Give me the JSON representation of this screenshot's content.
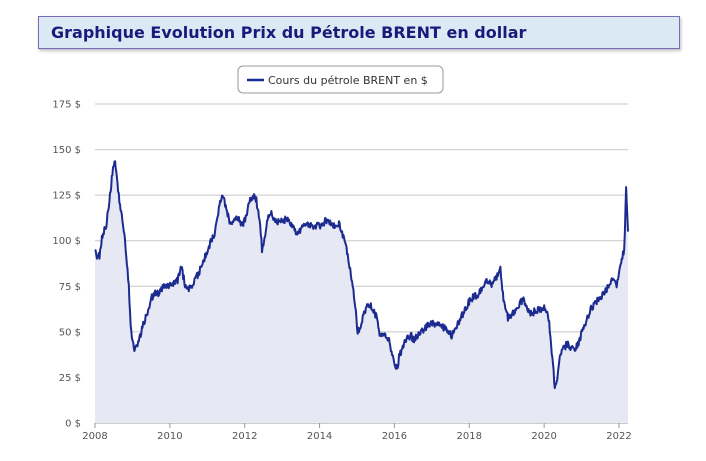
{
  "header": {
    "title": "Graphique Evolution Prix du Pétrole BRENT en dollar"
  },
  "colors": {
    "series": "#1c2b8f",
    "area": "#e6e8f4",
    "grid": "#c8c8c8"
  },
  "chart_data": {
    "type": "area",
    "title": "Graphique Evolution Prix du Pétrole BRENT en dollar",
    "legend": {
      "position": "top-center",
      "label": "Cours du pétrole BRENT en $"
    },
    "xlim": [
      2008,
      2022.2
    ],
    "ylim": [
      0,
      175
    ],
    "y_ticks": [
      "0 $",
      "25 $",
      "50 $",
      "75 $",
      "100 $",
      "125 $",
      "150 $",
      "175 $"
    ],
    "x_ticks": [
      "2008",
      "2010",
      "2012",
      "2014",
      "2016",
      "2018",
      "2020",
      "2022"
    ],
    "grid": true,
    "series": [
      {
        "name": "Cours du pétrole BRENT en $",
        "x": [
          2008.0,
          2008.05,
          2008.12,
          2008.2,
          2008.3,
          2008.4,
          2008.48,
          2008.52,
          2008.6,
          2008.7,
          2008.8,
          2008.9,
          2008.95,
          2009.0,
          2009.05,
          2009.1,
          2009.2,
          2009.3,
          2009.4,
          2009.5,
          2009.6,
          2009.7,
          2009.8,
          2009.9,
          2010.0,
          2010.2,
          2010.3,
          2010.4,
          2010.5,
          2010.6,
          2010.7,
          2010.8,
          2010.9,
          2011.0,
          2011.1,
          2011.2,
          2011.3,
          2011.4,
          2011.5,
          2011.6,
          2011.7,
          2011.8,
          2011.9,
          2012.0,
          2012.1,
          2012.2,
          2012.3,
          2012.4,
          2012.45,
          2012.5,
          2012.6,
          2012.7,
          2012.8,
          2012.9,
          2013.0,
          2013.2,
          2013.4,
          2013.6,
          2013.8,
          2014.0,
          2014.2,
          2014.4,
          2014.5,
          2014.6,
          2014.7,
          2014.8,
          2014.9,
          2015.0,
          2015.1,
          2015.2,
          2015.3,
          2015.4,
          2015.5,
          2015.6,
          2015.7,
          2015.8,
          2015.9,
          2016.0,
          2016.05,
          2016.1,
          2016.2,
          2016.3,
          2016.4,
          2016.5,
          2016.6,
          2016.7,
          2016.8,
          2016.9,
          2017.0,
          2017.2,
          2017.4,
          2017.5,
          2017.6,
          2017.8,
          2018.0,
          2018.2,
          2018.4,
          2018.6,
          2018.8,
          2018.9,
          2019.0,
          2019.2,
          2019.4,
          2019.5,
          2019.6,
          2019.8,
          2020.0,
          2020.1,
          2020.2,
          2020.25,
          2020.3,
          2020.4,
          2020.5,
          2020.6,
          2020.8,
          2020.9,
          2021.0,
          2021.2,
          2021.4,
          2021.6,
          2021.8,
          2021.9,
          2022.0,
          2022.1,
          2022.15,
          2022.2
        ],
        "values": [
          97,
          90,
          92,
          103,
          108,
          125,
          140,
          145,
          130,
          115,
          100,
          75,
          55,
          45,
          40,
          42,
          48,
          55,
          60,
          68,
          72,
          70,
          75,
          76,
          75,
          78,
          85,
          76,
          74,
          76,
          80,
          84,
          90,
          94,
          100,
          105,
          118,
          125,
          117,
          110,
          110,
          113,
          108,
          112,
          120,
          125,
          122,
          110,
          95,
          100,
          112,
          115,
          110,
          110,
          112,
          110,
          104,
          110,
          108,
          108,
          112,
          108,
          110,
          103,
          96,
          84,
          70,
          50,
          55,
          62,
          65,
          63,
          58,
          48,
          48,
          47,
          40,
          32,
          30,
          36,
          42,
          46,
          48,
          46,
          48,
          50,
          52,
          54,
          55,
          54,
          50,
          48,
          52,
          60,
          68,
          70,
          78,
          76,
          84,
          65,
          58,
          62,
          68,
          64,
          60,
          62,
          64,
          55,
          32,
          20,
          22,
          38,
          42,
          43,
          40,
          45,
          52,
          62,
          68,
          72,
          80,
          75,
          88,
          95,
          130,
          105
        ]
      }
    ]
  }
}
